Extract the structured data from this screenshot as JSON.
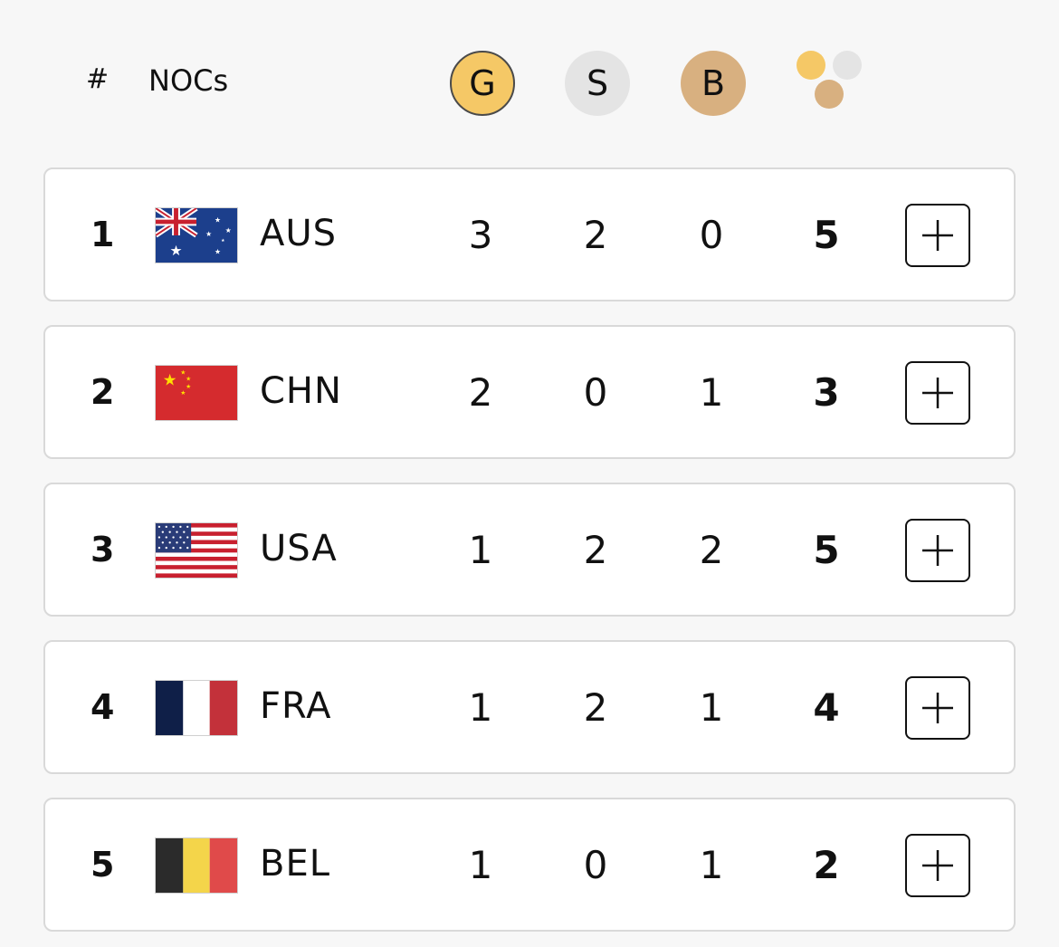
{
  "header": {
    "rank_label": "#",
    "noc_label": "NOCs",
    "gold_label": "G",
    "silver_label": "S",
    "bronze_label": "B",
    "total_icon": "medal-stack-icon"
  },
  "colors": {
    "gold": "#f5c866",
    "silver": "#e4e4e4",
    "bronze": "#d8b080",
    "row_border": "#d9d9d9"
  },
  "rows": [
    {
      "rank": "1",
      "noc": "AUS",
      "flag": "flag-aus-icon",
      "gold": "3",
      "silver": "2",
      "bronze": "0",
      "total": "5",
      "action_icon": "plus-icon"
    },
    {
      "rank": "2",
      "noc": "CHN",
      "flag": "flag-chn-icon",
      "gold": "2",
      "silver": "0",
      "bronze": "1",
      "total": "3",
      "action_icon": "plus-icon"
    },
    {
      "rank": "3",
      "noc": "USA",
      "flag": "flag-usa-icon",
      "gold": "1",
      "silver": "2",
      "bronze": "2",
      "total": "5",
      "action_icon": "plus-icon"
    },
    {
      "rank": "4",
      "noc": "FRA",
      "flag": "flag-fra-icon",
      "gold": "1",
      "silver": "2",
      "bronze": "1",
      "total": "4",
      "action_icon": "plus-icon"
    },
    {
      "rank": "5",
      "noc": "BEL",
      "flag": "flag-bel-icon",
      "gold": "1",
      "silver": "0",
      "bronze": "1",
      "total": "2",
      "action_icon": "plus-icon"
    }
  ]
}
